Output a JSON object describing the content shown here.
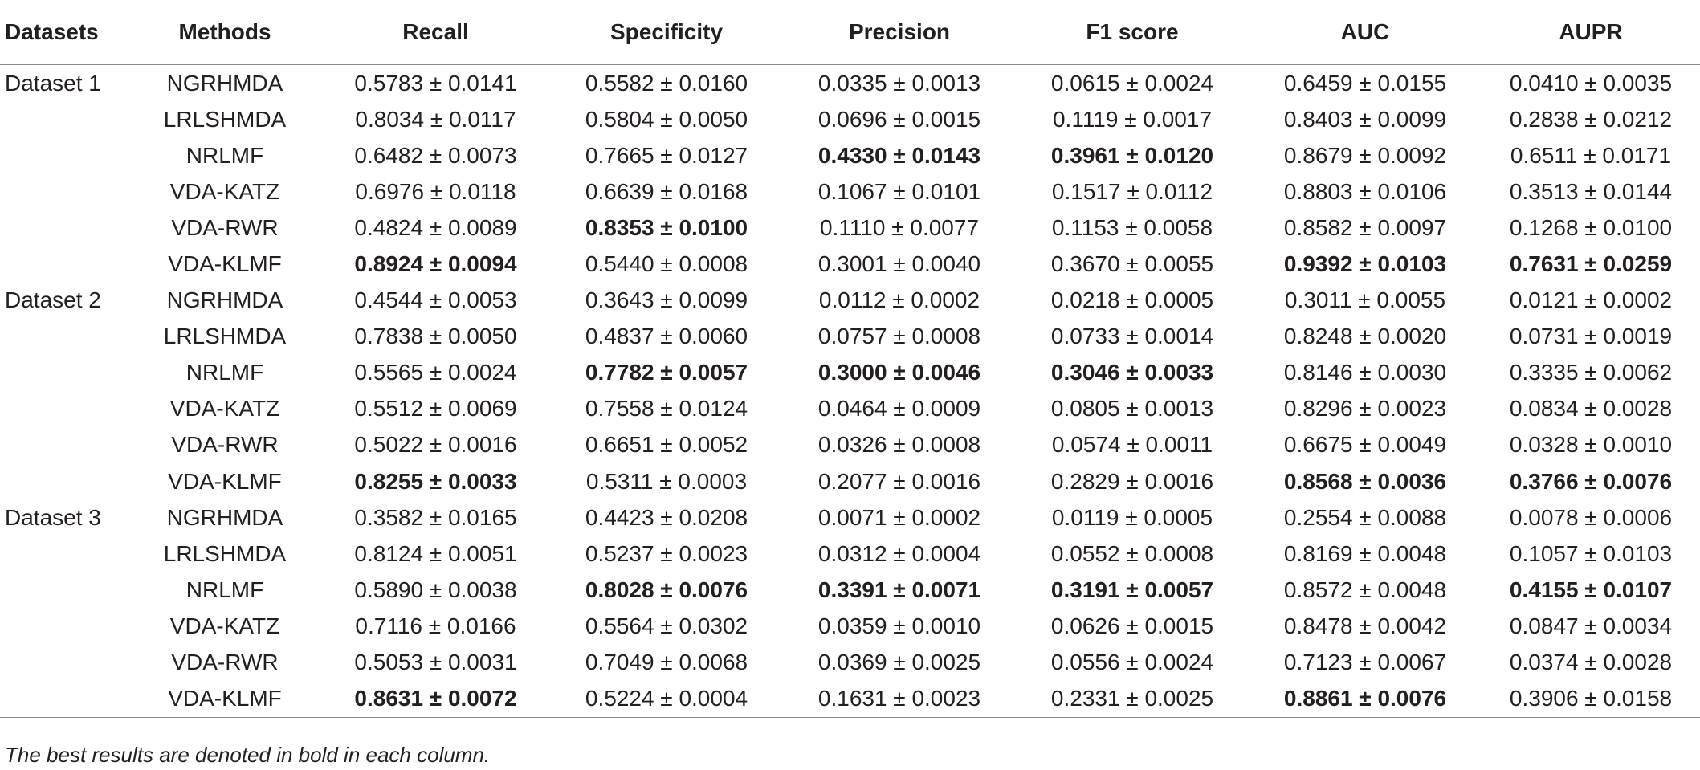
{
  "table": {
    "headers": [
      "Datasets",
      "Methods",
      "Recall",
      "Specificity",
      "Precision",
      "F1 score",
      "AUC",
      "AUPR"
    ],
    "groups": [
      {
        "dataset": "Dataset 1",
        "rows": [
          {
            "method": "NGRHMDA",
            "values": [
              "0.5783 ± 0.0141",
              "0.5582 ± 0.0160",
              "0.0335 ± 0.0013",
              "0.0615 ± 0.0024",
              "0.6459 ± 0.0155",
              "0.0410 ± 0.0035"
            ],
            "bold": [
              false,
              false,
              false,
              false,
              false,
              false
            ]
          },
          {
            "method": "LRLSHMDA",
            "values": [
              "0.8034 ± 0.0117",
              "0.5804 ± 0.0050",
              "0.0696 ± 0.0015",
              "0.1119 ± 0.0017",
              "0.8403 ± 0.0099",
              "0.2838 ± 0.0212"
            ],
            "bold": [
              false,
              false,
              false,
              false,
              false,
              false
            ]
          },
          {
            "method": "NRLMF",
            "values": [
              "0.6482 ± 0.0073",
              "0.7665 ± 0.0127",
              "0.4330 ± 0.0143",
              "0.3961 ± 0.0120",
              "0.8679 ± 0.0092",
              "0.6511 ± 0.0171"
            ],
            "bold": [
              false,
              false,
              true,
              true,
              false,
              false
            ]
          },
          {
            "method": "VDA-KATZ",
            "values": [
              "0.6976 ± 0.0118",
              "0.6639 ± 0.0168",
              "0.1067 ± 0.0101",
              "0.1517 ± 0.0112",
              "0.8803 ± 0.0106",
              "0.3513 ± 0.0144"
            ],
            "bold": [
              false,
              false,
              false,
              false,
              false,
              false
            ]
          },
          {
            "method": "VDA-RWR",
            "values": [
              "0.4824 ± 0.0089",
              "0.8353 ± 0.0100",
              "0.1110 ± 0.0077",
              "0.1153 ± 0.0058",
              "0.8582 ± 0.0097",
              "0.1268 ± 0.0100"
            ],
            "bold": [
              false,
              true,
              false,
              false,
              false,
              false
            ]
          },
          {
            "method": "VDA-KLMF",
            "values": [
              "0.8924 ± 0.0094",
              "0.5440 ± 0.0008",
              "0.3001 ± 0.0040",
              "0.3670 ± 0.0055",
              "0.9392 ± 0.0103",
              "0.7631 ± 0.0259"
            ],
            "bold": [
              true,
              false,
              false,
              false,
              true,
              true
            ]
          }
        ]
      },
      {
        "dataset": "Dataset 2",
        "rows": [
          {
            "method": "NGRHMDA",
            "values": [
              "0.4544 ± 0.0053",
              "0.3643 ± 0.0099",
              "0.0112 ± 0.0002",
              "0.0218 ± 0.0005",
              "0.3011 ± 0.0055",
              "0.0121 ± 0.0002"
            ],
            "bold": [
              false,
              false,
              false,
              false,
              false,
              false
            ]
          },
          {
            "method": "LRLSHMDA",
            "values": [
              "0.7838 ± 0.0050",
              "0.4837 ± 0.0060",
              "0.0757 ± 0.0008",
              "0.0733 ± 0.0014",
              "0.8248 ± 0.0020",
              "0.0731 ± 0.0019"
            ],
            "bold": [
              false,
              false,
              false,
              false,
              false,
              false
            ]
          },
          {
            "method": "NRLMF",
            "values": [
              "0.5565 ± 0.0024",
              "0.7782 ± 0.0057",
              "0.3000 ± 0.0046",
              "0.3046 ± 0.0033",
              "0.8146 ± 0.0030",
              "0.3335 ± 0.0062"
            ],
            "bold": [
              false,
              true,
              true,
              true,
              false,
              false
            ]
          },
          {
            "method": "VDA-KATZ",
            "values": [
              "0.5512 ± 0.0069",
              "0.7558 ± 0.0124",
              "0.0464 ± 0.0009",
              "0.0805 ± 0.0013",
              "0.8296 ± 0.0023",
              "0.0834 ± 0.0028"
            ],
            "bold": [
              false,
              false,
              false,
              false,
              false,
              false
            ]
          },
          {
            "method": "VDA-RWR",
            "values": [
              "0.5022 ± 0.0016",
              "0.6651 ± 0.0052",
              "0.0326 ± 0.0008",
              "0.0574 ± 0.0011",
              "0.6675 ± 0.0049",
              "0.0328 ± 0.0010"
            ],
            "bold": [
              false,
              false,
              false,
              false,
              false,
              false
            ]
          },
          {
            "method": "VDA-KLMF",
            "values": [
              "0.8255 ± 0.0033",
              "0.5311 ± 0.0003",
              "0.2077 ± 0.0016",
              "0.2829 ± 0.0016",
              "0.8568 ± 0.0036",
              "0.3766 ± 0.0076"
            ],
            "bold": [
              true,
              false,
              false,
              false,
              true,
              true
            ]
          }
        ]
      },
      {
        "dataset": "Dataset 3",
        "rows": [
          {
            "method": "NGRHMDA",
            "values": [
              "0.3582 ± 0.0165",
              "0.4423 ± 0.0208",
              "0.0071 ± 0.0002",
              "0.0119 ± 0.0005",
              "0.2554 ± 0.0088",
              "0.0078 ± 0.0006"
            ],
            "bold": [
              false,
              false,
              false,
              false,
              false,
              false
            ]
          },
          {
            "method": "LRLSHMDA",
            "values": [
              "0.8124 ± 0.0051",
              "0.5237 ± 0.0023",
              "0.0312 ± 0.0004",
              "0.0552 ± 0.0008",
              "0.8169 ± 0.0048",
              "0.1057 ± 0.0103"
            ],
            "bold": [
              false,
              false,
              false,
              false,
              false,
              false
            ]
          },
          {
            "method": "NRLMF",
            "values": [
              "0.5890 ± 0.0038",
              "0.8028 ± 0.0076",
              "0.3391 ± 0.0071",
              "0.3191 ± 0.0057",
              "0.8572 ± 0.0048",
              "0.4155 ± 0.0107"
            ],
            "bold": [
              false,
              true,
              true,
              true,
              false,
              true
            ]
          },
          {
            "method": "VDA-KATZ",
            "values": [
              "0.7116 ± 0.0166",
              "0.5564 ± 0.0302",
              "0.0359 ± 0.0010",
              "0.0626 ± 0.0015",
              "0.8478 ± 0.0042",
              "0.0847 ± 0.0034"
            ],
            "bold": [
              false,
              false,
              false,
              false,
              false,
              false
            ]
          },
          {
            "method": "VDA-RWR",
            "values": [
              "0.5053 ± 0.0031",
              "0.7049 ± 0.0068",
              "0.0369 ± 0.0025",
              "0.0556 ± 0.0024",
              "0.7123 ± 0.0067",
              "0.0374 ± 0.0028"
            ],
            "bold": [
              false,
              false,
              false,
              false,
              false,
              false
            ]
          },
          {
            "method": "VDA-KLMF",
            "values": [
              "0.8631 ± 0.0072",
              "0.5224 ± 0.0004",
              "0.1631 ± 0.0023",
              "0.2331 ± 0.0025",
              "0.8861 ± 0.0076",
              "0.3906 ± 0.0158"
            ],
            "bold": [
              true,
              false,
              false,
              false,
              true,
              false
            ]
          }
        ]
      }
    ]
  },
  "footnote": "The best results are denoted in bold in each column."
}
